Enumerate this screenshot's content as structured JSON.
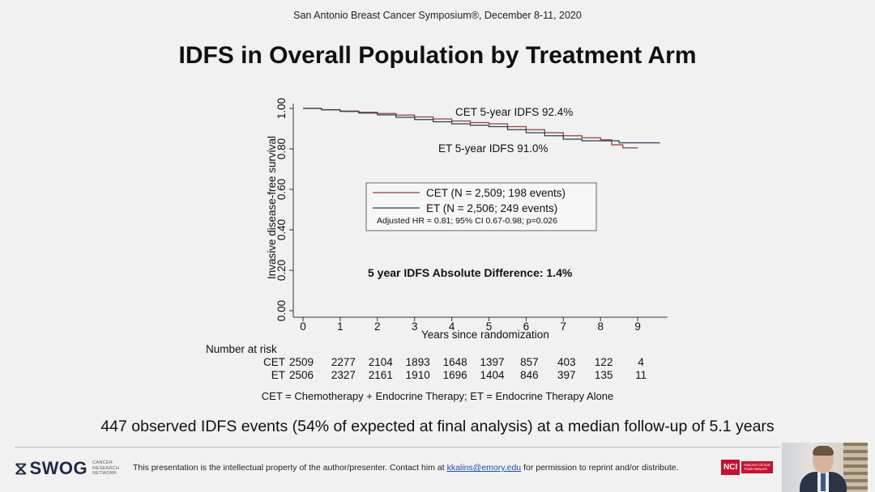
{
  "header": {
    "conference": "San Antonio Breast Cancer Symposium®, December 8-11, 2020",
    "title": "IDFS in Overall Population by Treatment Arm"
  },
  "chart_data": {
    "type": "line",
    "title": "",
    "xlabel": "Years since randomization",
    "ylabel": "Invasive disease-free survival",
    "xlim": [
      0,
      9.8
    ],
    "ylim": [
      0,
      1.0
    ],
    "x_ticks": [
      "0",
      "1",
      "2",
      "3",
      "4",
      "5",
      "6",
      "7",
      "8",
      "9"
    ],
    "y_ticks": [
      "0.00",
      "0.20",
      "0.40",
      "0.60",
      "0.80",
      "1.00"
    ],
    "grid": false,
    "colors": {
      "CET": "#9b3a3a",
      "ET": "#2e3f52",
      "axis": "#333333"
    },
    "series": [
      {
        "name": "CET",
        "x": [
          0,
          0.5,
          1,
          1.5,
          2,
          2.5,
          3,
          3.5,
          4,
          4.5,
          5,
          5.5,
          6,
          6.5,
          7,
          7.5,
          8,
          8.3,
          8.6,
          9.0
        ],
        "y": [
          1.0,
          0.994,
          0.987,
          0.981,
          0.975,
          0.967,
          0.958,
          0.948,
          0.938,
          0.93,
          0.924,
          0.91,
          0.895,
          0.88,
          0.865,
          0.855,
          0.845,
          0.82,
          0.805,
          0.805
        ]
      },
      {
        "name": "ET",
        "x": [
          0,
          0.5,
          1,
          1.5,
          2,
          2.5,
          3,
          3.5,
          4,
          4.5,
          5,
          5.5,
          6,
          6.5,
          7,
          7.5,
          8,
          8.5,
          9.0,
          9.6
        ],
        "y": [
          1.0,
          0.993,
          0.985,
          0.977,
          0.968,
          0.956,
          0.945,
          0.934,
          0.924,
          0.917,
          0.91,
          0.895,
          0.88,
          0.865,
          0.848,
          0.84,
          0.84,
          0.83,
          0.83,
          0.83
        ]
      }
    ],
    "annotations": {
      "cet_label": "CET 5-year IDFS 92.4%",
      "et_label": "ET 5-year IDFS 91.0%",
      "difference": "5 year IDFS Absolute Difference: 1.4%"
    },
    "legend": {
      "placement": "center",
      "entries": [
        "CET (N = 2,509; 198 events)",
        "ET (N = 2,506; 249 events)"
      ],
      "hr_text": "Adjusted HR = 0.81; 95% CI 0.67-0.98; p=0.026"
    },
    "risk_table": {
      "title": "Number at risk",
      "rows": [
        {
          "label": "CET",
          "values": [
            "2509",
            "2277",
            "2104",
            "1893",
            "1648",
            "1397",
            "857",
            "403",
            "122",
            "4"
          ]
        },
        {
          "label": "ET",
          "values": [
            "2506",
            "2327",
            "2161",
            "1910",
            "1696",
            "1404",
            "846",
            "397",
            "135",
            "11"
          ]
        }
      ]
    }
  },
  "footnote": "CET = Chemotherapy + Endocrine Therapy; ET = Endocrine Therapy Alone",
  "summary": "447 observed IDFS events (54% of expected at final analysis) at a median follow-up of 5.1 years",
  "footer": {
    "logo_word": "SWOG",
    "logo_sub": [
      "CANCER",
      "RESEARCH",
      "NETWORK"
    ],
    "disclaimer_prefix": "This presentation is the intellectual property of the author/presenter. Contact him at",
    "disclaimer_email": "kkalins@emory.edu",
    "disclaimer_suffix": "for permission to reprint and/or distribute.",
    "nci_mark": "NCI",
    "nci_sub": [
      "National Clinical",
      "Trials Network"
    ]
  }
}
